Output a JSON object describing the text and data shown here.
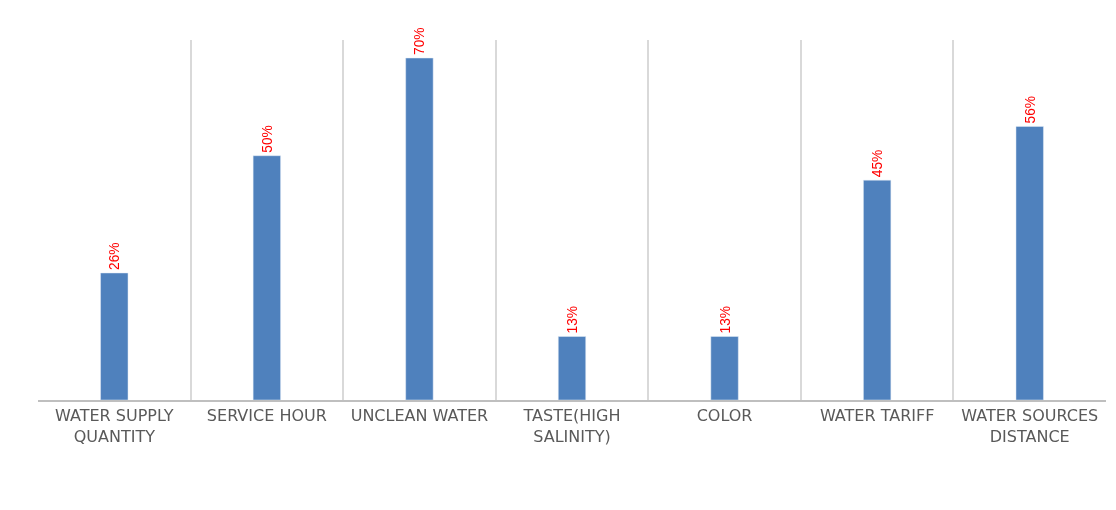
{
  "chart_data": {
    "type": "bar",
    "categories": [
      "WATER SUPPLY QUANTITY",
      "SERVICE HOUR",
      "UNCLEAN WATER",
      "TASTE(HIGH SALINITY)",
      "COLOR",
      "WATER TARIFF",
      "WATER SOURCES DISTANCE"
    ],
    "values": [
      26,
      50,
      70,
      13,
      13,
      45,
      56
    ],
    "value_labels": [
      "26%",
      "50%",
      "70%",
      "13%",
      "13%",
      "45%",
      "56%"
    ],
    "color": "#4f81bd",
    "grid": "x",
    "tick_labels": "x"
  }
}
